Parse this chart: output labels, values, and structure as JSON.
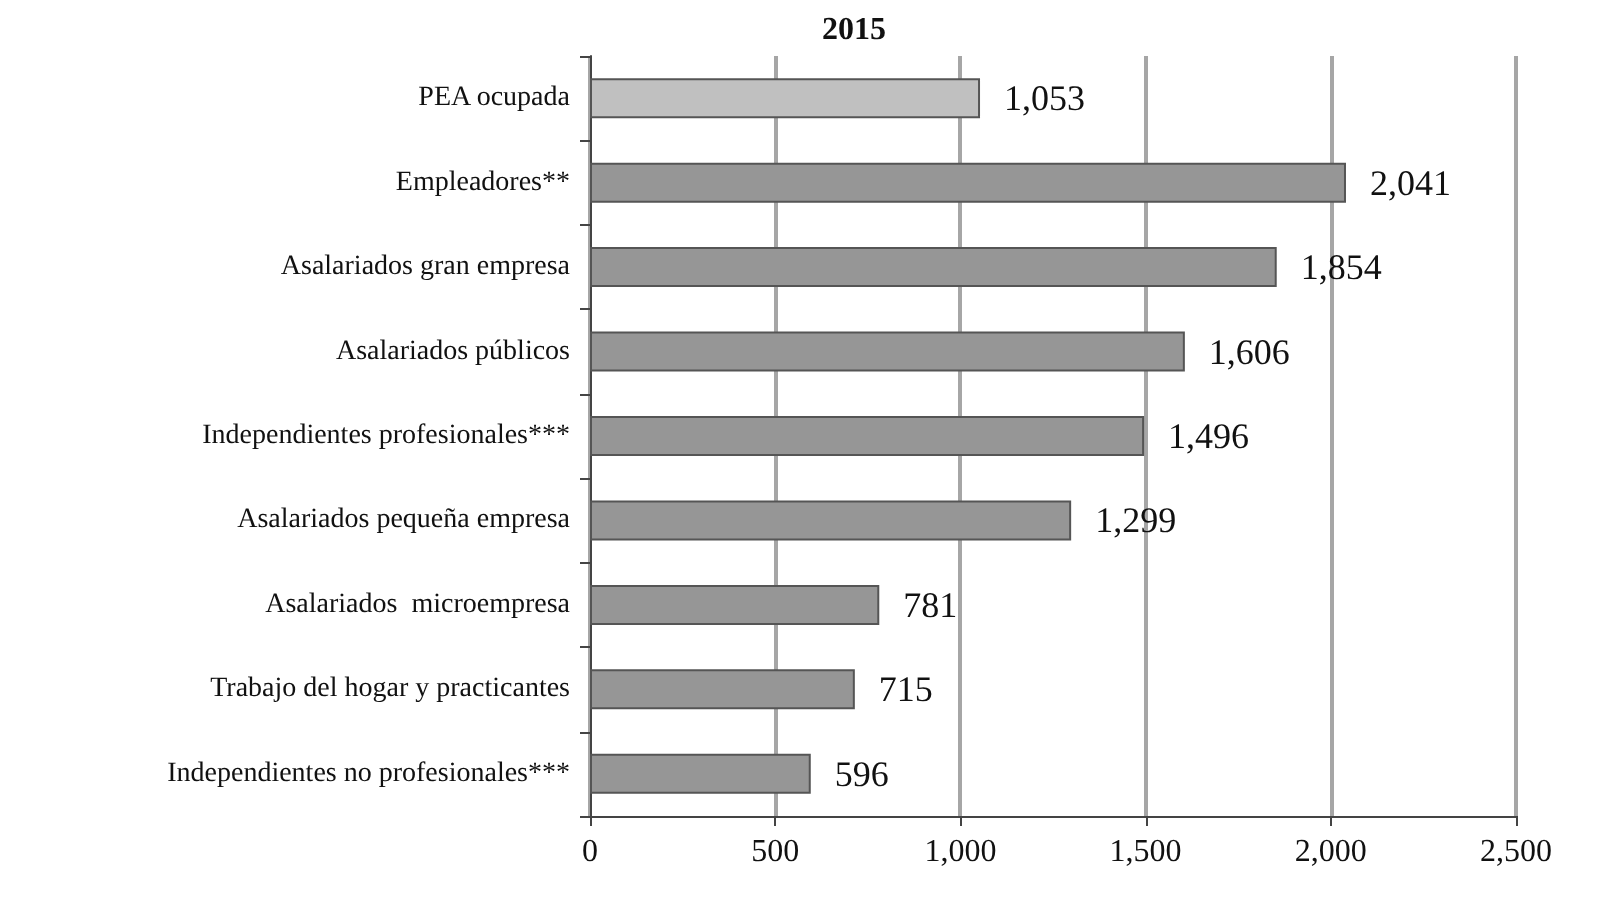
{
  "chart_data": {
    "type": "bar",
    "orientation": "horizontal",
    "title": "2015",
    "categories": [
      "PEA ocupada",
      "Empleadores**",
      "Asalariados gran empresa",
      "Asalariados públicos",
      "Independientes profesionales***",
      "Asalariados pequeña empresa",
      "Asalariados  microempresa",
      "Trabajo del hogar y practicantes",
      "Independientes no profesionales***"
    ],
    "values": [
      1053,
      2041,
      1854,
      1606,
      1496,
      1299,
      781,
      715,
      596
    ],
    "value_labels": [
      "1,053",
      "2,041",
      "1,854",
      "1,606",
      "1,496",
      "1,299",
      "781",
      "715",
      "596"
    ],
    "colors": [
      "#c0c0c0",
      "#969696",
      "#969696",
      "#969696",
      "#969696",
      "#969696",
      "#969696",
      "#969696",
      "#969696"
    ],
    "xlim": [
      0,
      2500
    ],
    "xticks": [
      {
        "value": 0,
        "label": "0"
      },
      {
        "value": 500,
        "label": "500"
      },
      {
        "value": 1000,
        "label": "1,000"
      },
      {
        "value": 1500,
        "label": "1,500"
      },
      {
        "value": 2000,
        "label": "2,000"
      },
      {
        "value": 2500,
        "label": "2,500"
      }
    ],
    "grid": "x"
  }
}
